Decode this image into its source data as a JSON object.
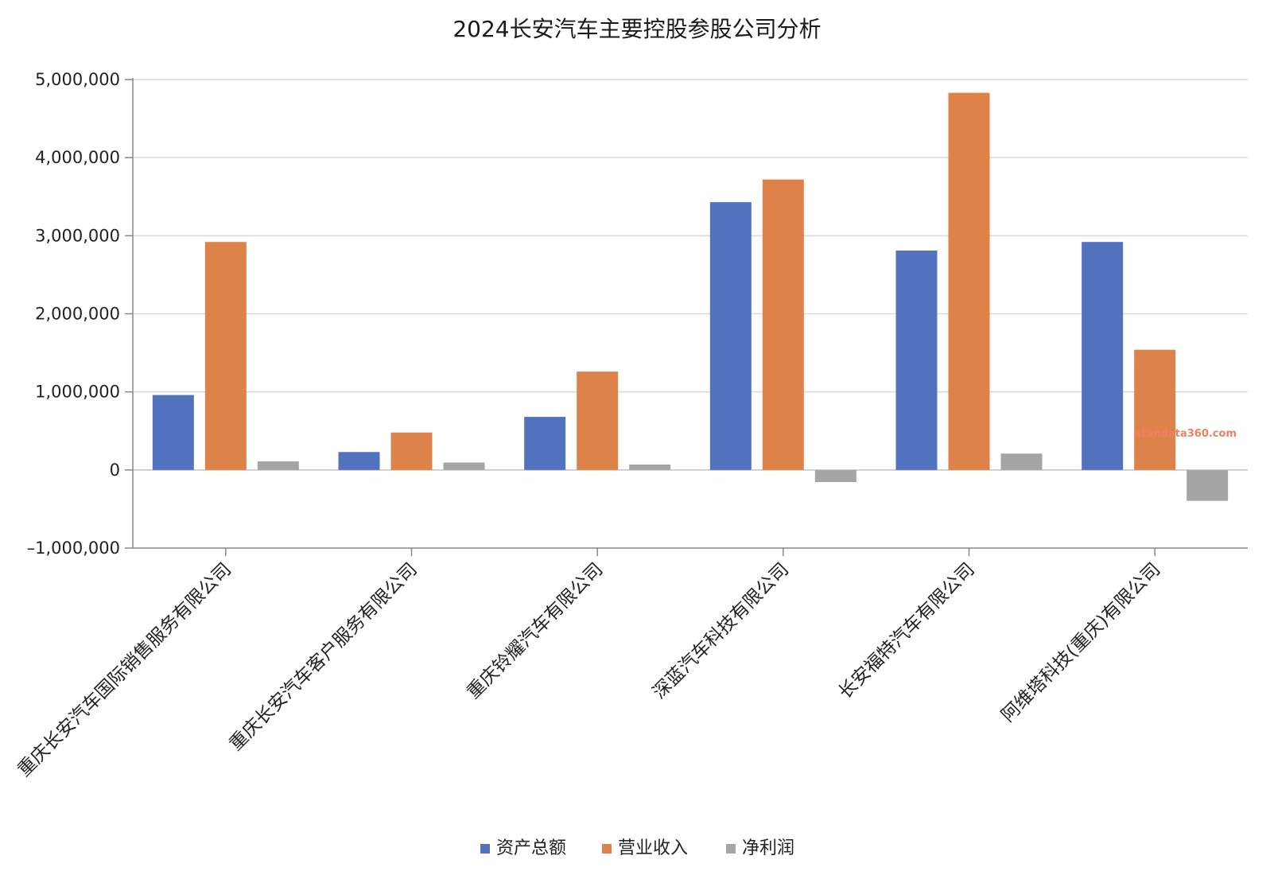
{
  "chart_data": {
    "type": "bar",
    "title": "2024长安汽车主要控股参股公司分析",
    "categories": [
      "重庆长安汽车国际销售服务有限公司",
      "重庆长安汽车客户服务有限公司",
      "重庆铃耀汽车有限公司",
      "深蓝汽车科技有限公司",
      "长安福特汽车有限公司",
      "阿维塔科技(重庆)有限公司"
    ],
    "series": [
      {
        "name": "资产总额",
        "color": "#5272be",
        "values": [
          960000,
          230000,
          680000,
          3430000,
          2810000,
          2920000
        ]
      },
      {
        "name": "营业收入",
        "color": "#dd834a",
        "values": [
          2920000,
          480000,
          1260000,
          3720000,
          4830000,
          1540000
        ]
      },
      {
        "name": "净利润",
        "color": "#a5a5a5",
        "values": [
          110000,
          95000,
          70000,
          -155000,
          210000,
          -395000
        ]
      }
    ],
    "ylim": [
      -1000000,
      5000000
    ],
    "yticks": [
      5000000,
      4000000,
      3000000,
      2000000,
      1000000,
      0,
      -1000000
    ],
    "ytick_labels": [
      "5,000,000",
      "4,000,000",
      "3,000,000",
      "2,000,000",
      "1,000,000",
      "0",
      "–1,000,000"
    ],
    "xlabel": "",
    "ylabel": "",
    "grid": true,
    "legend_position": "bottom-center",
    "watermark": "standata360.com"
  }
}
